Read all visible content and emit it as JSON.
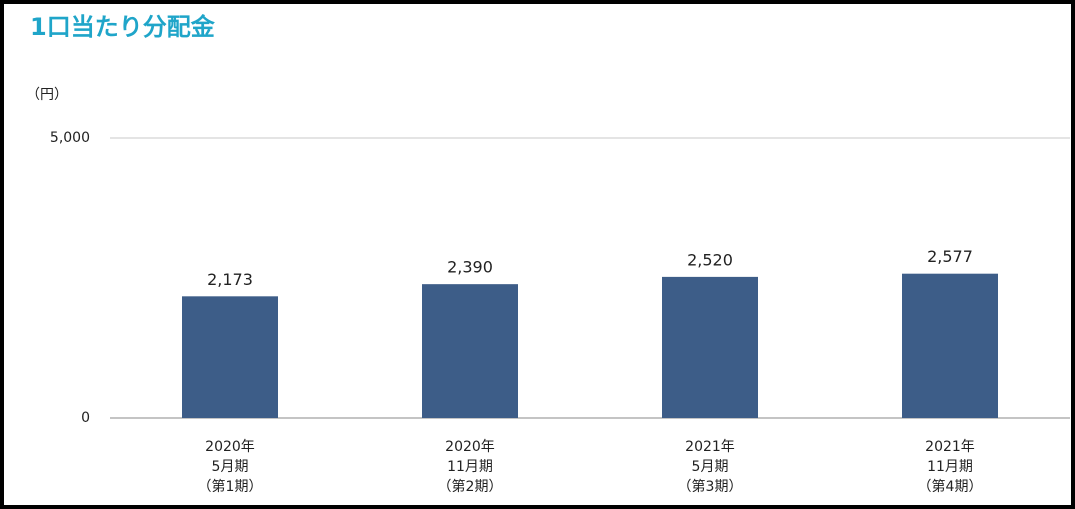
{
  "chart_data": {
    "type": "bar",
    "title": "1口当たり分配金",
    "unit_label": "（円）",
    "categories": [
      [
        "2020年",
        "5月期",
        "（第1期）"
      ],
      [
        "2020年",
        "11月期",
        "（第2期）"
      ],
      [
        "2021年",
        "5月期",
        "（第3期）"
      ],
      [
        "2021年",
        "11月期",
        "（第4期）"
      ]
    ],
    "values": [
      2173,
      2390,
      2520,
      2577
    ],
    "value_labels": [
      "2,173",
      "2,390",
      "2,520",
      "2,577"
    ],
    "color": "#3d5d88",
    "ylim": [
      0,
      5000
    ],
    "yticks": [
      0,
      {
        "value": 5000,
        "label": "5,000"
      }
    ],
    "grid": true
  }
}
